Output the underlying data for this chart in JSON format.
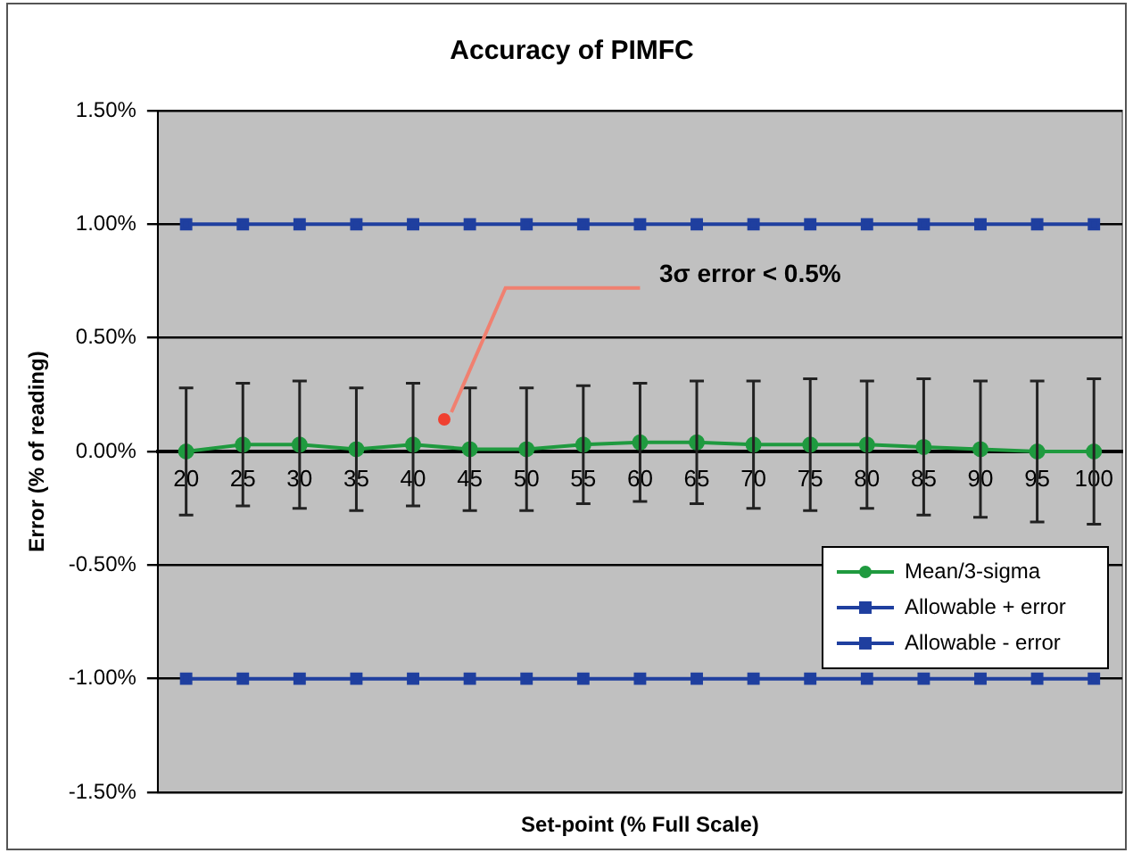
{
  "chart_data": {
    "type": "line",
    "title": "Accuracy of PIMFC",
    "xlabel": "Set-point (% Full Scale)",
    "ylabel": "Error (% of reading)",
    "categories": [
      "20",
      "25",
      "30",
      "35",
      "40",
      "45",
      "50",
      "55",
      "60",
      "65",
      "70",
      "75",
      "80",
      "85",
      "90",
      "95",
      "100"
    ],
    "series": [
      {
        "name": "Mean/3-sigma",
        "color": "#1f9a3f",
        "values": [
          0.0,
          0.03,
          0.03,
          0.01,
          0.03,
          0.01,
          0.01,
          0.03,
          0.04,
          0.04,
          0.03,
          0.03,
          0.03,
          0.02,
          0.01,
          0.0,
          0.0
        ],
        "marker": "circle",
        "errors": [
          0.28,
          0.27,
          0.28,
          0.27,
          0.27,
          0.27,
          0.27,
          0.26,
          0.26,
          0.27,
          0.28,
          0.29,
          0.28,
          0.3,
          0.3,
          0.31,
          0.32
        ]
      },
      {
        "name": "Allowable + error",
        "color": "#1f3f9f",
        "marker": "square",
        "values": [
          1,
          1,
          1,
          1,
          1,
          1,
          1,
          1,
          1,
          1,
          1,
          1,
          1,
          1,
          1,
          1,
          1
        ]
      },
      {
        "name": "Allowable - error",
        "color": "#1f3f9f",
        "marker": "square",
        "values": [
          -1,
          -1,
          -1,
          -1,
          -1,
          -1,
          -1,
          -1,
          -1,
          -1,
          -1,
          -1,
          -1,
          -1,
          -1,
          -1,
          -1
        ]
      }
    ],
    "ylim": [
      -1.5,
      1.5
    ],
    "yticks": [
      {
        "value": -1.5,
        "label": "-1.50%"
      },
      {
        "value": -1,
        "label": "-1.00%"
      },
      {
        "value": -0.5,
        "label": "-0.50%"
      },
      {
        "value": 0,
        "label": "0.00%"
      },
      {
        "value": 0.5,
        "label": "0.50%"
      },
      {
        "value": 1,
        "label": "1.00%"
      },
      {
        "value": 1.5,
        "label": "1.50%"
      }
    ],
    "grid": "y",
    "legend": "bottom right",
    "line_style": "solid",
    "annotations": [
      "3σ error < 0.5%"
    ]
  }
}
